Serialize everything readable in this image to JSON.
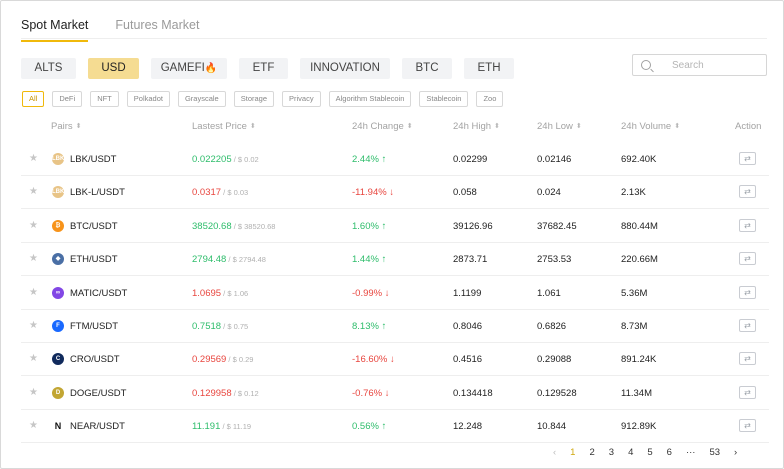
{
  "market_tabs": [
    {
      "label": "Spot Market",
      "active": true
    },
    {
      "label": "Futures Market",
      "active": false
    }
  ],
  "categories": [
    {
      "label": "ALTS",
      "active": false
    },
    {
      "label": "USD",
      "active": true
    },
    {
      "label": "GAMEFI",
      "emoji": "🔥",
      "active": false
    },
    {
      "label": "ETF",
      "active": false
    },
    {
      "label": "INNOVATION",
      "active": false
    },
    {
      "label": "BTC",
      "active": false
    },
    {
      "label": "ETH",
      "active": false
    }
  ],
  "search": {
    "placeholder": "Search"
  },
  "filters": [
    {
      "label": "All",
      "active": true
    },
    {
      "label": "DeFi"
    },
    {
      "label": "NFT"
    },
    {
      "label": "Polkadot"
    },
    {
      "label": "Grayscale"
    },
    {
      "label": "Storage"
    },
    {
      "label": "Privacy"
    },
    {
      "label": "Algorithm Stablecoin"
    },
    {
      "label": "Stablecoin"
    },
    {
      "label": "Zoo"
    }
  ],
  "columns": {
    "pairs": "Pairs",
    "price": "Lastest Price",
    "change": "24h Change",
    "high": "24h High",
    "low": "24h Low",
    "volume": "24h Volume",
    "action": "Action"
  },
  "icons": {
    "sort": "sort-icon",
    "star": "star-icon",
    "action": "transfer-icon",
    "up_arrow": "arrow-up-icon",
    "down_arrow": "arrow-down-icon"
  },
  "colors": {
    "accent": "#f0b90b",
    "up": "#2ebd6b",
    "down": "#e8463f"
  },
  "rows": [
    {
      "pair": "LBK/USDT",
      "icon": "lbk-icon",
      "icon_color": "#e8c487",
      "icon_text": "LBK",
      "price": "0.022205",
      "price_usd": " / $ 0.02",
      "price_dir": "up",
      "change": "2.44%",
      "change_dir": "up",
      "high": "0.02299",
      "low": "0.02146",
      "volume": "692.40K"
    },
    {
      "pair": "LBK-L/USDT",
      "icon": "lbk-icon",
      "icon_color": "#e8c487",
      "icon_text": "LBK",
      "price": "0.0317",
      "price_usd": " / $ 0.03",
      "price_dir": "down",
      "change": "-11.94%",
      "change_dir": "down",
      "high": "0.058",
      "low": "0.024",
      "volume": "2.13K"
    },
    {
      "pair": "BTC/USDT",
      "icon": "bitcoin-icon",
      "icon_color": "#f7931a",
      "icon_text": "₿",
      "price": "38520.68",
      "price_usd": " / $ 38520.68",
      "price_dir": "up",
      "change": "1.60%",
      "change_dir": "up",
      "high": "39126.96",
      "low": "37682.45",
      "volume": "880.44M"
    },
    {
      "pair": "ETH/USDT",
      "icon": "ethereum-icon",
      "icon_color": "#4a6fa5",
      "icon_text": "◆",
      "price": "2794.48",
      "price_usd": " / $ 2794.48",
      "price_dir": "up",
      "change": "1.44%",
      "change_dir": "up",
      "high": "2873.71",
      "low": "2753.53",
      "volume": "220.66M"
    },
    {
      "pair": "MATIC/USDT",
      "icon": "polygon-icon",
      "icon_color": "#8247e5",
      "icon_text": "∞",
      "price": "1.0695",
      "price_usd": " / $ 1.06",
      "price_dir": "down",
      "change": "-0.99%",
      "change_dir": "down",
      "high": "1.1199",
      "low": "1.061",
      "volume": "5.36M"
    },
    {
      "pair": "FTM/USDT",
      "icon": "fantom-icon",
      "icon_color": "#1969ff",
      "icon_text": "F",
      "price": "0.7518",
      "price_usd": " / $ 0.75",
      "price_dir": "up",
      "change": "8.13%",
      "change_dir": "up",
      "high": "0.8046",
      "low": "0.6826",
      "volume": "8.73M"
    },
    {
      "pair": "CRO/USDT",
      "icon": "cronos-icon",
      "icon_color": "#102a5c",
      "icon_text": "C",
      "price": "0.29569",
      "price_usd": " / $ 0.29",
      "price_dir": "down",
      "change": "-16.60%",
      "change_dir": "down",
      "high": "0.4516",
      "low": "0.29088",
      "volume": "891.24K"
    },
    {
      "pair": "DOGE/USDT",
      "icon": "dogecoin-icon",
      "icon_color": "#c2a633",
      "icon_text": "D",
      "price": "0.129958",
      "price_usd": " / $ 0.12",
      "price_dir": "down",
      "change": "-0.76%",
      "change_dir": "down",
      "high": "0.134418",
      "low": "0.129528",
      "volume": "11.34M"
    },
    {
      "pair": "NEAR/USDT",
      "icon": "near-icon",
      "icon_color": "#ffffff",
      "icon_text": "N",
      "price": "11.191",
      "price_usd": " / $ 11.19",
      "price_dir": "up",
      "change": "0.56%",
      "change_dir": "up",
      "high": "12.248",
      "low": "10.844",
      "volume": "912.89K"
    }
  ],
  "pagination": {
    "prev": "‹",
    "pages": [
      "1",
      "2",
      "3",
      "4",
      "5",
      "6"
    ],
    "current": "1",
    "ellipsis": "···",
    "last": "53",
    "next": "›"
  }
}
